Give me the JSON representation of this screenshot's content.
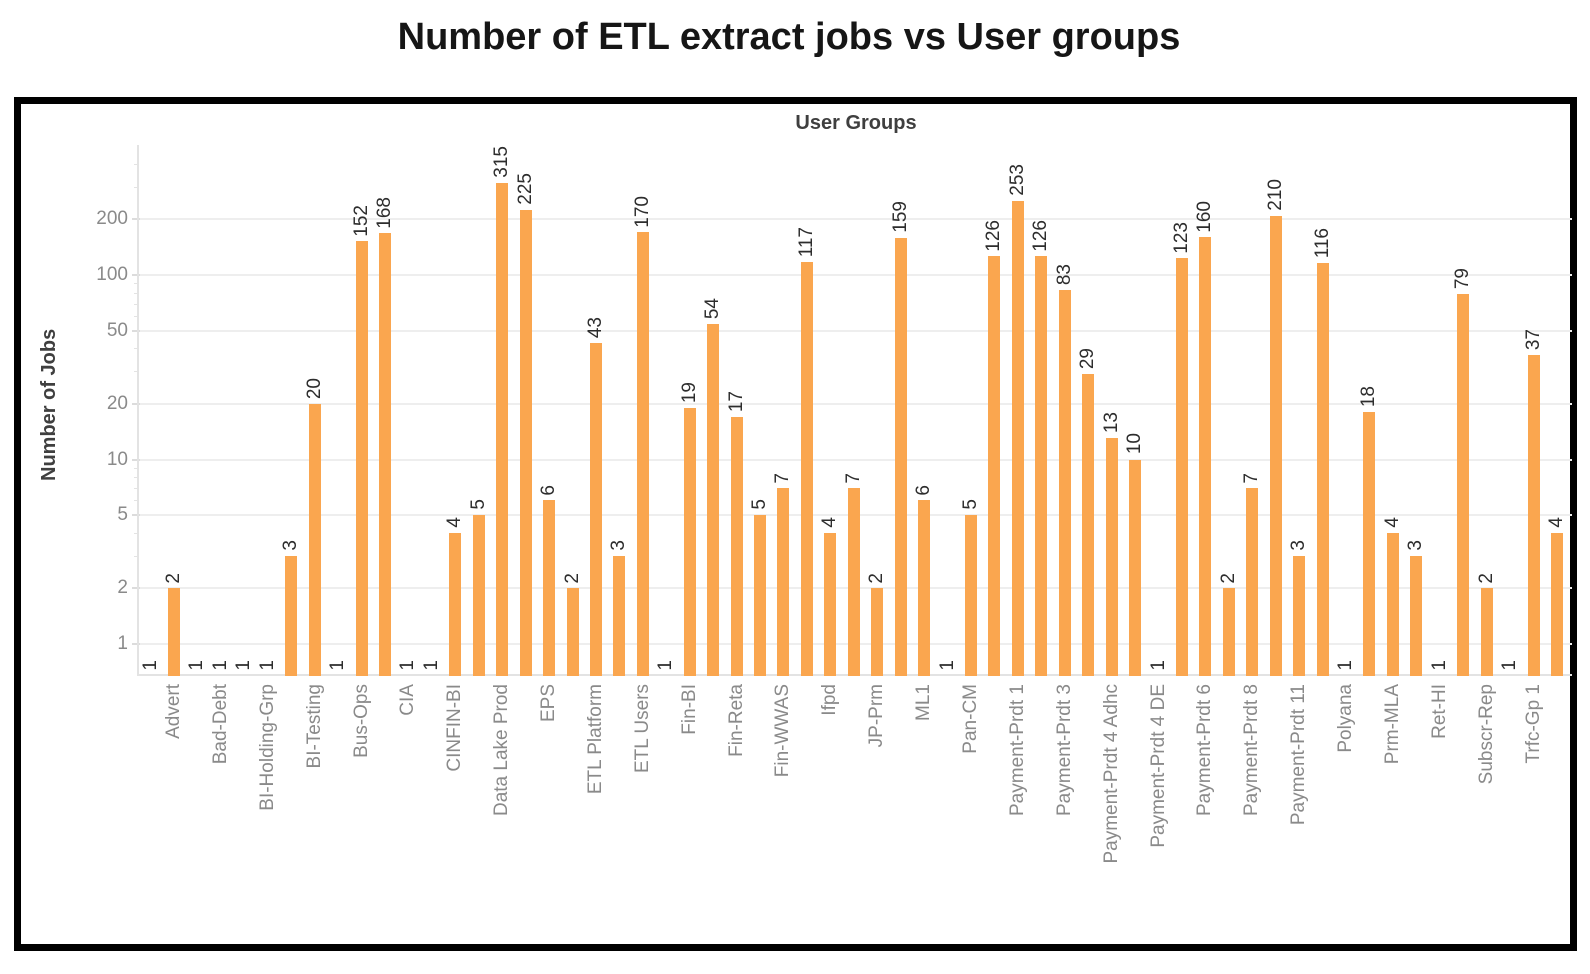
{
  "title": "Number of ETL extract jobs vs User groups",
  "chart_data": {
    "type": "bar",
    "title": "User Groups",
    "xlabel": "User Groups",
    "ylabel": "Number of Jobs",
    "y_scale": "log",
    "y_ticks": [
      200,
      100,
      50,
      20,
      10,
      5,
      2,
      1
    ],
    "y_minor_ticks": [
      3,
      4,
      6,
      7,
      8,
      9,
      30,
      40,
      60,
      70,
      80,
      90,
      300,
      400
    ],
    "grid": "horizontal",
    "legend": "none",
    "bar_color": "#FAA64F",
    "groups": [
      {
        "label": "Advert",
        "values": [
          1,
          2,
          1
        ]
      },
      {
        "label": "Bad-Debt",
        "values": [
          1,
          1
        ]
      },
      {
        "label": "BI-Holding-Grp",
        "values": [
          1,
          3
        ]
      },
      {
        "label": "BI-Testing",
        "values": [
          20,
          1
        ]
      },
      {
        "label": "Bus-Ops",
        "values": [
          152,
          168
        ]
      },
      {
        "label": "CIA",
        "values": [
          1,
          1
        ]
      },
      {
        "label": "CINFIN-BI",
        "values": [
          4,
          5
        ]
      },
      {
        "label": "Data Lake Prod",
        "values": [
          315,
          225
        ]
      },
      {
        "label": "EPS",
        "values": [
          6,
          2
        ]
      },
      {
        "label": "ETL Platform",
        "values": [
          43,
          3
        ]
      },
      {
        "label": "ETL Users",
        "values": [
          170,
          1
        ]
      },
      {
        "label": "Fin-BI",
        "values": [
          19,
          54
        ]
      },
      {
        "label": "Fin-Reta",
        "values": [
          17,
          5
        ]
      },
      {
        "label": "Fin-WWAS",
        "values": [
          7,
          117
        ]
      },
      {
        "label": "Ifpd",
        "values": [
          4,
          7
        ]
      },
      {
        "label": "JP-Prm",
        "values": [
          2,
          159
        ]
      },
      {
        "label": "ML1",
        "values": [
          6,
          1
        ]
      },
      {
        "label": "Pan-CM",
        "values": [
          5,
          126
        ]
      },
      {
        "label": "Payment-Prdt 1",
        "values": [
          253,
          126
        ]
      },
      {
        "label": "Payment-Prdt 3",
        "values": [
          83,
          29
        ]
      },
      {
        "label": "Payment-Prdt 4 Adhc",
        "values": [
          13,
          10
        ]
      },
      {
        "label": "Payment-Prdt 4 DE",
        "values": [
          1,
          123
        ]
      },
      {
        "label": "Payment-Prdt 6",
        "values": [
          160,
          2
        ]
      },
      {
        "label": "Payment-Prdt 8",
        "values": [
          7,
          210
        ]
      },
      {
        "label": "Payment-Prdt 11",
        "values": [
          3,
          116
        ]
      },
      {
        "label": "Polyana",
        "values": [
          1,
          18
        ]
      },
      {
        "label": "Prm-MLA",
        "values": [
          4,
          3
        ]
      },
      {
        "label": "Ret-HI",
        "values": [
          1,
          79
        ]
      },
      {
        "label": "Subscr-Rep",
        "values": [
          2,
          1
        ]
      },
      {
        "label": "Trfc-Gp 1",
        "values": [
          37,
          4
        ]
      }
    ]
  }
}
